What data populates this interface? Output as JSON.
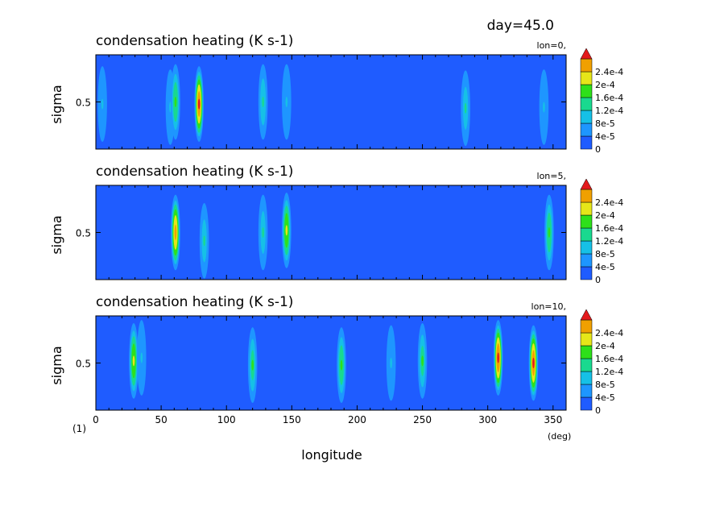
{
  "chart_data": {
    "type": "heatmap",
    "figure_title": "day=45.0",
    "figure_label": "(1)",
    "xlabel": "longitude",
    "xunit": "(deg)",
    "xlim": [
      0,
      360
    ],
    "xticks": [
      "0",
      "50",
      "100",
      "150",
      "200",
      "250",
      "300",
      "350"
    ],
    "ylabel": "sigma",
    "yticks": [
      "0.5"
    ],
    "colorbar": {
      "levels": [
        "0",
        "4e-5",
        "8e-5",
        "1.2e-4",
        "1.6e-4",
        "2e-4",
        "2.4e-4"
      ],
      "colors": [
        "#1f5cff",
        "#1e96ff",
        "#16c0e6",
        "#19d98f",
        "#2ee01a",
        "#e6e619",
        "#f0a000",
        "#e31a1c"
      ]
    },
    "panels": [
      {
        "title": "condensation heating (K s-1)",
        "subtitle": "lon=0,",
        "cells": [
          {
            "lon": 5,
            "sigma": 0.52,
            "peak": 4.5e-05
          },
          {
            "lon": 57,
            "sigma": 0.55,
            "peak": 5e-05
          },
          {
            "lon": 61,
            "sigma": 0.5,
            "peak": 0.00014
          },
          {
            "lon": 79,
            "sigma": 0.52,
            "peak": 0.00025
          },
          {
            "lon": 128,
            "sigma": 0.5,
            "peak": 0.0001
          },
          {
            "lon": 146,
            "sigma": 0.5,
            "peak": 6e-05
          },
          {
            "lon": 283,
            "sigma": 0.56,
            "peak": 9e-05
          },
          {
            "lon": 343,
            "sigma": 0.55,
            "peak": 5e-05
          }
        ]
      },
      {
        "title": "condensation heating (K s-1)",
        "subtitle": "lon=5,",
        "cells": [
          {
            "lon": 61,
            "sigma": 0.5,
            "peak": 0.00023
          },
          {
            "lon": 83,
            "sigma": 0.58,
            "peak": 9e-05
          },
          {
            "lon": 128,
            "sigma": 0.5,
            "peak": 9e-05
          },
          {
            "lon": 146,
            "sigma": 0.48,
            "peak": 0.00018
          },
          {
            "lon": 347,
            "sigma": 0.5,
            "peak": 0.00014
          }
        ]
      },
      {
        "title": "condensation heating (K s-1)",
        "subtitle": "lon=10,",
        "cells": [
          {
            "lon": 29,
            "sigma": 0.48,
            "peak": 0.00018
          },
          {
            "lon": 35,
            "sigma": 0.45,
            "peak": 5e-05
          },
          {
            "lon": 120,
            "sigma": 0.52,
            "peak": 0.00012
          },
          {
            "lon": 188,
            "sigma": 0.52,
            "peak": 0.00014
          },
          {
            "lon": 226,
            "sigma": 0.5,
            "peak": 5e-05
          },
          {
            "lon": 250,
            "sigma": 0.48,
            "peak": 0.00012
          },
          {
            "lon": 308,
            "sigma": 0.45,
            "peak": 0.00026
          },
          {
            "lon": 335,
            "sigma": 0.5,
            "peak": 0.00025
          }
        ]
      }
    ]
  }
}
